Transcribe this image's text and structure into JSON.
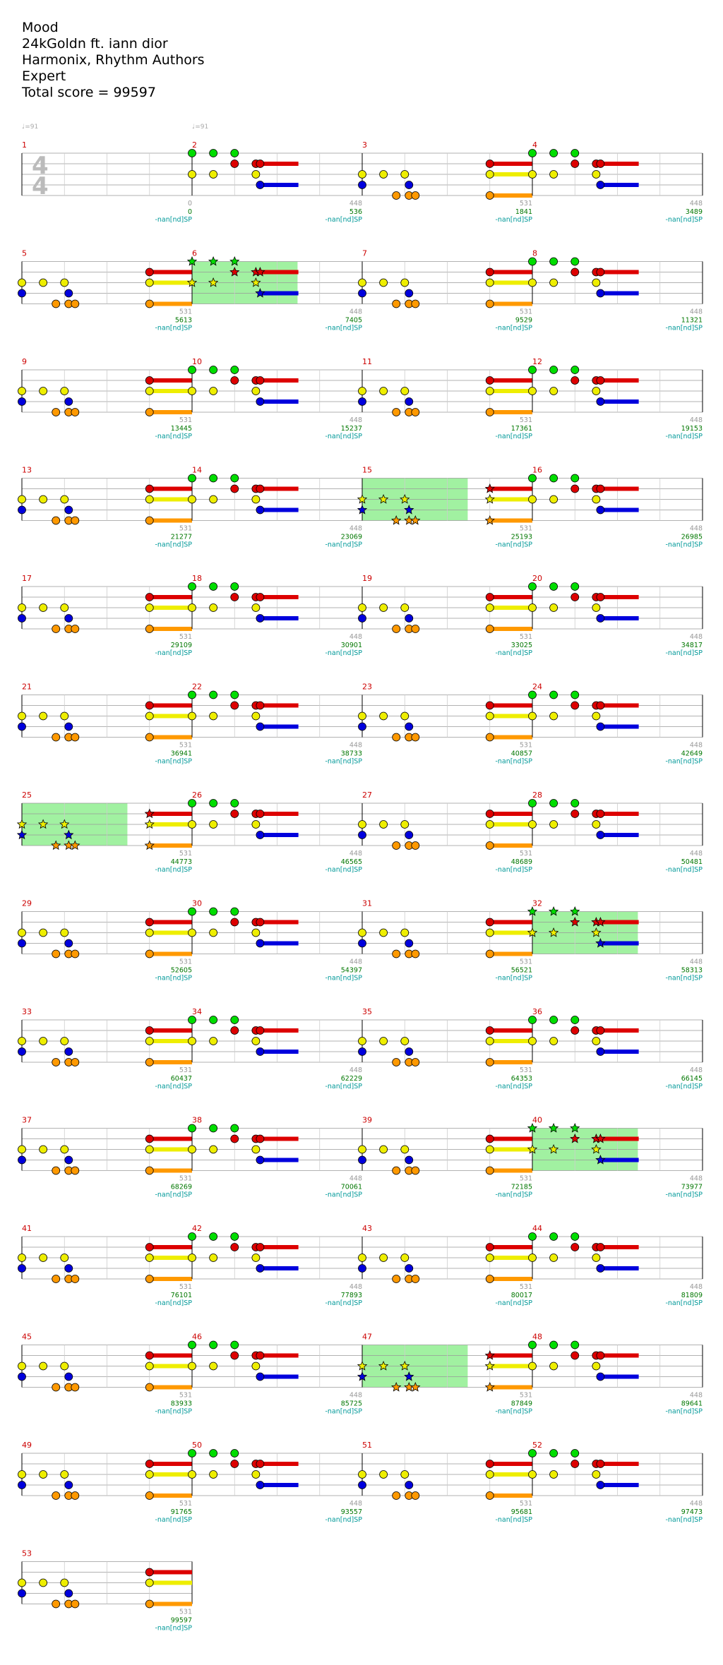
{
  "song": {
    "title": "Mood",
    "artist": "24kGoldn ft. iann dior",
    "charter": "Harmonix, Rhythm Authors",
    "difficulty": "Expert",
    "total_score": "Total score = 99597"
  },
  "tempo_marks": [
    {
      "measure": 1,
      "label": "♩=91"
    },
    {
      "measure": 2,
      "label": "♩=91"
    }
  ],
  "time_signature": {
    "top": "4",
    "bottom": "4"
  },
  "sp_label": "-nan[nd]SP",
  "colors": {
    "green": "#00dd00",
    "red": "#dd0000",
    "yellow": "#eeee00",
    "blue": "#0000dd",
    "orange": "#ff9900",
    "sp_phrase": "#90ee90"
  },
  "sp_measures": [
    6,
    15,
    25,
    32,
    40,
    47
  ],
  "measures": [
    {
      "n": "1",
      "combo": "0",
      "score": "0"
    },
    {
      "n": "2",
      "combo": "448",
      "score": "536"
    },
    {
      "n": "3",
      "combo": "531",
      "score": "1841"
    },
    {
      "n": "4",
      "combo": "448",
      "score": "3489"
    },
    {
      "n": "5",
      "combo": "531",
      "score": "5613"
    },
    {
      "n": "6",
      "combo": "448",
      "score": "7405"
    },
    {
      "n": "7",
      "combo": "531",
      "score": "9529"
    },
    {
      "n": "8",
      "combo": "448",
      "score": "11321"
    },
    {
      "n": "9",
      "combo": "531",
      "score": "13445"
    },
    {
      "n": "10",
      "combo": "448",
      "score": "15237"
    },
    {
      "n": "11",
      "combo": "531",
      "score": "17361"
    },
    {
      "n": "12",
      "combo": "448",
      "score": "19153"
    },
    {
      "n": "13",
      "combo": "531",
      "score": "21277"
    },
    {
      "n": "14",
      "combo": "448",
      "score": "23069"
    },
    {
      "n": "15",
      "combo": "531",
      "score": "25193"
    },
    {
      "n": "16",
      "combo": "448",
      "score": "26985"
    },
    {
      "n": "17",
      "combo": "531",
      "score": "29109"
    },
    {
      "n": "18",
      "combo": "448",
      "score": "30901"
    },
    {
      "n": "19",
      "combo": "531",
      "score": "33025"
    },
    {
      "n": "20",
      "combo": "448",
      "score": "34817"
    },
    {
      "n": "21",
      "combo": "531",
      "score": "36941"
    },
    {
      "n": "22",
      "combo": "448",
      "score": "38733"
    },
    {
      "n": "23",
      "combo": "531",
      "score": "40857"
    },
    {
      "n": "24",
      "combo": "448",
      "score": "42649"
    },
    {
      "n": "25",
      "combo": "531",
      "score": "44773"
    },
    {
      "n": "26",
      "combo": "448",
      "score": "46565"
    },
    {
      "n": "27",
      "combo": "531",
      "score": "48689"
    },
    {
      "n": "28",
      "combo": "448",
      "score": "50481"
    },
    {
      "n": "29",
      "combo": "531",
      "score": "52605"
    },
    {
      "n": "30",
      "combo": "448",
      "score": "54397"
    },
    {
      "n": "31",
      "combo": "531",
      "score": "56521"
    },
    {
      "n": "32",
      "combo": "448",
      "score": "58313"
    },
    {
      "n": "33",
      "combo": "531",
      "score": "60437"
    },
    {
      "n": "34",
      "combo": "448",
      "score": "62229"
    },
    {
      "n": "35",
      "combo": "531",
      "score": "64353"
    },
    {
      "n": "36",
      "combo": "448",
      "score": "66145"
    },
    {
      "n": "37",
      "combo": "531",
      "score": "68269"
    },
    {
      "n": "38",
      "combo": "448",
      "score": "70061"
    },
    {
      "n": "39",
      "combo": "531",
      "score": "72185"
    },
    {
      "n": "40",
      "combo": "448",
      "score": "73977"
    },
    {
      "n": "41",
      "combo": "531",
      "score": "76101"
    },
    {
      "n": "42",
      "combo": "448",
      "score": "77893"
    },
    {
      "n": "43",
      "combo": "531",
      "score": "80017"
    },
    {
      "n": "44",
      "combo": "448",
      "score": "81809"
    },
    {
      "n": "45",
      "combo": "531",
      "score": "83933"
    },
    {
      "n": "46",
      "combo": "448",
      "score": "85725"
    },
    {
      "n": "47",
      "combo": "531",
      "score": "87849"
    },
    {
      "n": "48",
      "combo": "448",
      "score": "89641"
    },
    {
      "n": "49",
      "combo": "531",
      "score": "91765"
    },
    {
      "n": "50",
      "combo": "448",
      "score": "93557"
    },
    {
      "n": "51",
      "combo": "531",
      "score": "95681"
    },
    {
      "n": "52",
      "combo": "448",
      "score": "97473"
    },
    {
      "n": "53",
      "combo": "531",
      "score": "99597"
    }
  ]
}
